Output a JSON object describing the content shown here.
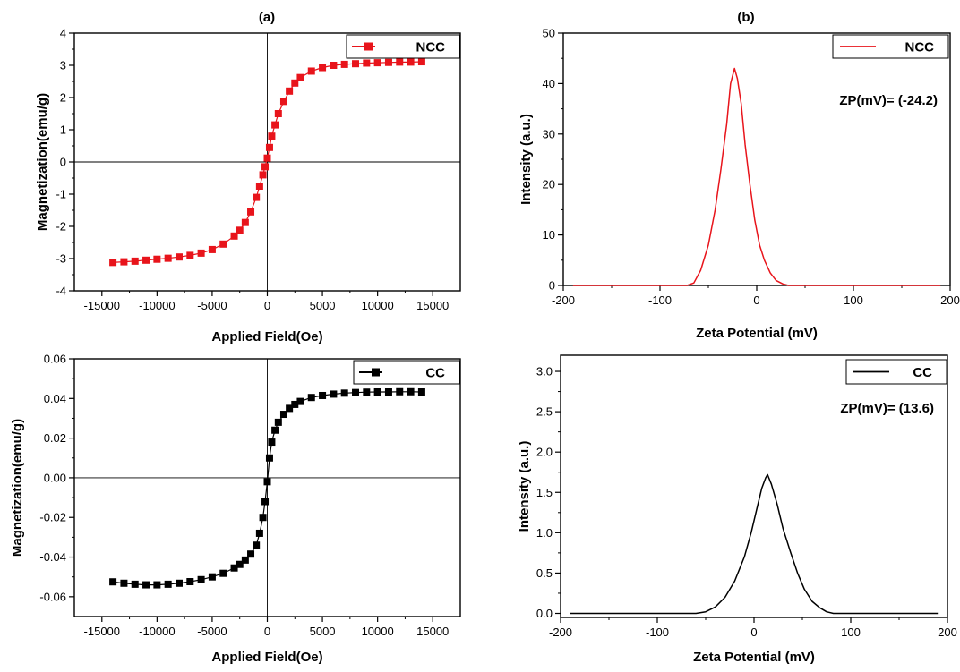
{
  "panel_labels": [
    "(a)",
    "(b)"
  ],
  "colors": {
    "ncc": "#e8141b",
    "cc": "#000000"
  },
  "chart_data": [
    {
      "type": "scatter",
      "panel_label": "(a)",
      "xlabel": "Applied Field(Oe)",
      "ylabel": "Magnetization(emu/g)",
      "xlim": [
        -17500,
        17500
      ],
      "ylim": [
        -4,
        4
      ],
      "xticks": [
        -15000,
        -10000,
        -5000,
        0,
        5000,
        10000,
        15000
      ],
      "yticks": [
        -4,
        -3,
        -2,
        -1,
        0,
        1,
        2,
        3,
        4
      ],
      "tick_decimals": 0,
      "grid": false,
      "legend_position": "top-right",
      "marker": "square",
      "line_width": 1.2,
      "color": "#e8141b",
      "series": [
        {
          "name": "NCC",
          "x": [
            -14000,
            -13000,
            -12000,
            -11000,
            -10000,
            -9000,
            -8000,
            -7000,
            -6000,
            -5000,
            -4000,
            -3000,
            -2500,
            -2000,
            -1500,
            -1000,
            -700,
            -400,
            -200,
            0,
            200,
            400,
            700,
            1000,
            1500,
            2000,
            2500,
            3000,
            4000,
            5000,
            6000,
            7000,
            8000,
            9000,
            10000,
            11000,
            12000,
            13000,
            14000
          ],
          "y": [
            -3.12,
            -3.1,
            -3.08,
            -3.05,
            -3.02,
            -2.99,
            -2.95,
            -2.9,
            -2.83,
            -2.72,
            -2.55,
            -2.3,
            -2.12,
            -1.88,
            -1.55,
            -1.1,
            -0.75,
            -0.4,
            -0.15,
            0.12,
            0.45,
            0.8,
            1.15,
            1.5,
            1.88,
            2.2,
            2.45,
            2.62,
            2.82,
            2.93,
            3.0,
            3.03,
            3.05,
            3.07,
            3.08,
            3.09,
            3.1,
            3.1,
            3.11
          ]
        }
      ]
    },
    {
      "type": "line",
      "panel_label": "(b)",
      "xlabel": "Zeta Potential (mV)",
      "ylabel": "Intensity (a.u.)",
      "xlim": [
        -200,
        200
      ],
      "ylim": [
        0,
        50
      ],
      "xticks": [
        -200,
        -100,
        0,
        100,
        200
      ],
      "yticks": [
        0,
        10,
        20,
        30,
        40,
        50
      ],
      "tick_decimals": 0,
      "grid": false,
      "legend_position": "top-right",
      "annotation": "ZP(mV)= (-24.2)",
      "line_width": 1.5,
      "color": "#e8141b",
      "series": [
        {
          "name": "NCC",
          "x": [
            -190,
            -100,
            -80,
            -72,
            -65,
            -58,
            -50,
            -43,
            -37,
            -31,
            -27,
            -23,
            -20,
            -16,
            -12,
            -7,
            -2,
            3,
            8,
            14,
            20,
            27,
            33,
            40,
            60,
            100,
            190
          ],
          "y": [
            0,
            0,
            0,
            0,
            0.5,
            3,
            8,
            15,
            23,
            32,
            40,
            43,
            41,
            36,
            28,
            20,
            13,
            8,
            5,
            2.5,
            1,
            0.3,
            0,
            0,
            0,
            0,
            0
          ]
        }
      ]
    },
    {
      "type": "scatter",
      "xlabel": "Applied Field(Oe)",
      "ylabel": "Magnetization(emu/g)",
      "xlim": [
        -17500,
        17500
      ],
      "ylim": [
        -0.07,
        0.06
      ],
      "xticks": [
        -15000,
        -10000,
        -5000,
        0,
        5000,
        10000,
        15000
      ],
      "yticks": [
        -0.06,
        -0.04,
        -0.02,
        0.0,
        0.02,
        0.04,
        0.06
      ],
      "tick_decimals": 2,
      "grid": false,
      "legend_position": "top-right",
      "marker": "square",
      "line_width": 1.2,
      "color": "#000000",
      "series": [
        {
          "name": "CC",
          "x": [
            -14000,
            -13000,
            -12000,
            -11000,
            -10000,
            -9000,
            -8000,
            -7000,
            -6000,
            -5000,
            -4000,
            -3000,
            -2500,
            -2000,
            -1500,
            -1000,
            -700,
            -400,
            -200,
            0,
            200,
            400,
            700,
            1000,
            1500,
            2000,
            2500,
            3000,
            4000,
            5000,
            6000,
            7000,
            8000,
            9000,
            10000,
            11000,
            12000,
            13000,
            14000
          ],
          "y": [
            -0.0525,
            -0.0532,
            -0.0537,
            -0.054,
            -0.054,
            -0.0537,
            -0.0532,
            -0.0524,
            -0.0514,
            -0.05,
            -0.0482,
            -0.0455,
            -0.0437,
            -0.0415,
            -0.0385,
            -0.034,
            -0.028,
            -0.02,
            -0.012,
            -0.002,
            0.01,
            0.018,
            0.024,
            0.028,
            0.032,
            0.035,
            0.037,
            0.0385,
            0.0405,
            0.0415,
            0.0422,
            0.0427,
            0.043,
            0.0432,
            0.0433,
            0.0433,
            0.0434,
            0.0434,
            0.0433
          ]
        }
      ]
    },
    {
      "type": "line",
      "xlabel": "Zeta Potential (mV)",
      "ylabel": "Intensity (a.u.)",
      "xlim": [
        -200,
        200
      ],
      "ylim": [
        -0.05,
        3.2
      ],
      "xticks": [
        -200,
        -100,
        0,
        100,
        200
      ],
      "yticks": [
        0.0,
        0.5,
        1.0,
        1.5,
        2.0,
        2.5,
        3.0
      ],
      "tick_decimals": 1,
      "grid": false,
      "legend_position": "top-right",
      "annotation": "ZP(mV)= (13.6)",
      "line_width": 1.5,
      "color": "#000000",
      "series": [
        {
          "name": "CC",
          "x": [
            -190,
            -60,
            -50,
            -40,
            -30,
            -20,
            -10,
            -3,
            3,
            8,
            12,
            14,
            18,
            24,
            30,
            38,
            45,
            52,
            60,
            68,
            75,
            82,
            100,
            190
          ],
          "y": [
            0,
            0,
            0.02,
            0.08,
            0.2,
            0.4,
            0.7,
            1.0,
            1.3,
            1.55,
            1.68,
            1.72,
            1.6,
            1.35,
            1.05,
            0.75,
            0.5,
            0.3,
            0.15,
            0.07,
            0.02,
            0,
            0,
            0
          ]
        }
      ]
    }
  ]
}
